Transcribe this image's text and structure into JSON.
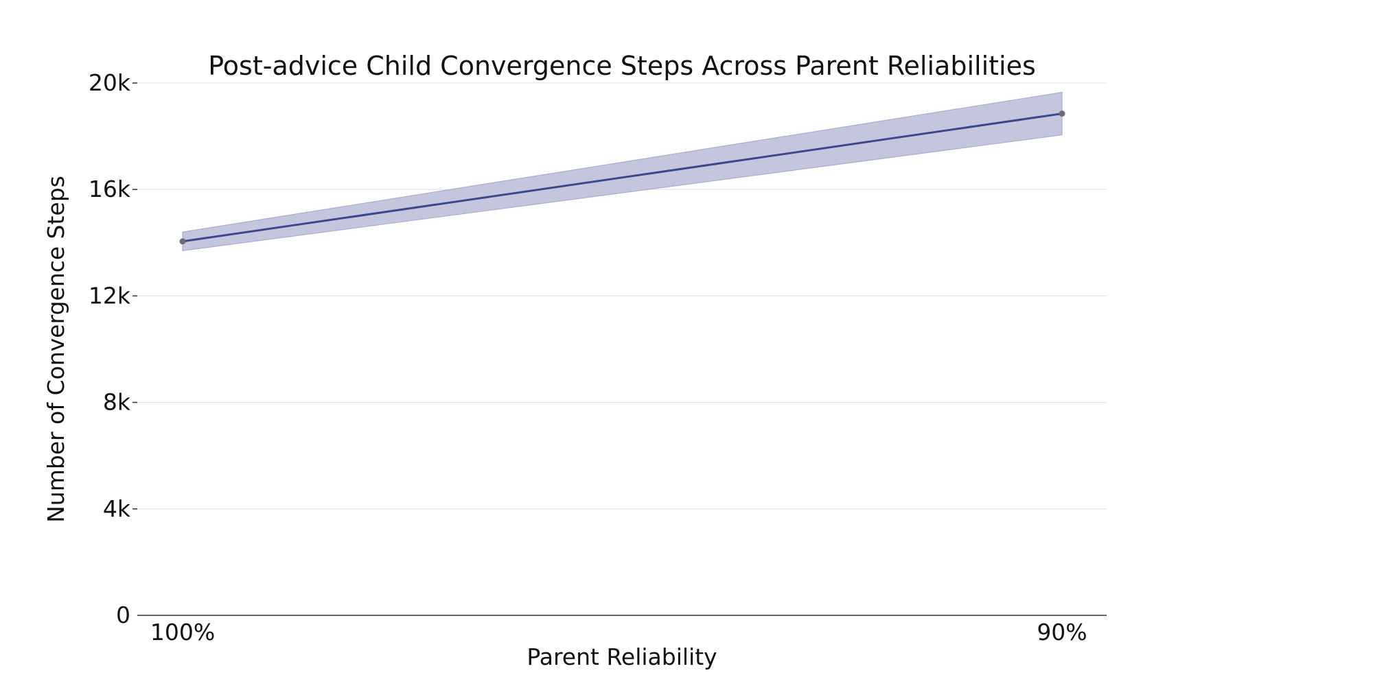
{
  "chart_data": {
    "type": "line",
    "title": "Post-advice Child Convergence Steps Across Parent Reliabilities",
    "xlabel": "Parent Reliability",
    "ylabel": "Number of Convergence Steps",
    "categories": [
      "100%",
      "90%"
    ],
    "ylim": [
      0,
      20000
    ],
    "yticks": [
      0,
      4000,
      8000,
      12000,
      16000,
      20000
    ],
    "ytick_labels": [
      "0",
      "4k",
      "8k",
      "12k",
      "16k",
      "20k"
    ],
    "grid": "horizontal",
    "series": [
      {
        "values": [
          14050,
          18850
        ],
        "lower": [
          13700,
          18050
        ],
        "upper": [
          14400,
          19650
        ],
        "color": "#3d4690",
        "band_color": "#c4c6dd",
        "marker_color": "#6b6b7a"
      }
    ]
  }
}
